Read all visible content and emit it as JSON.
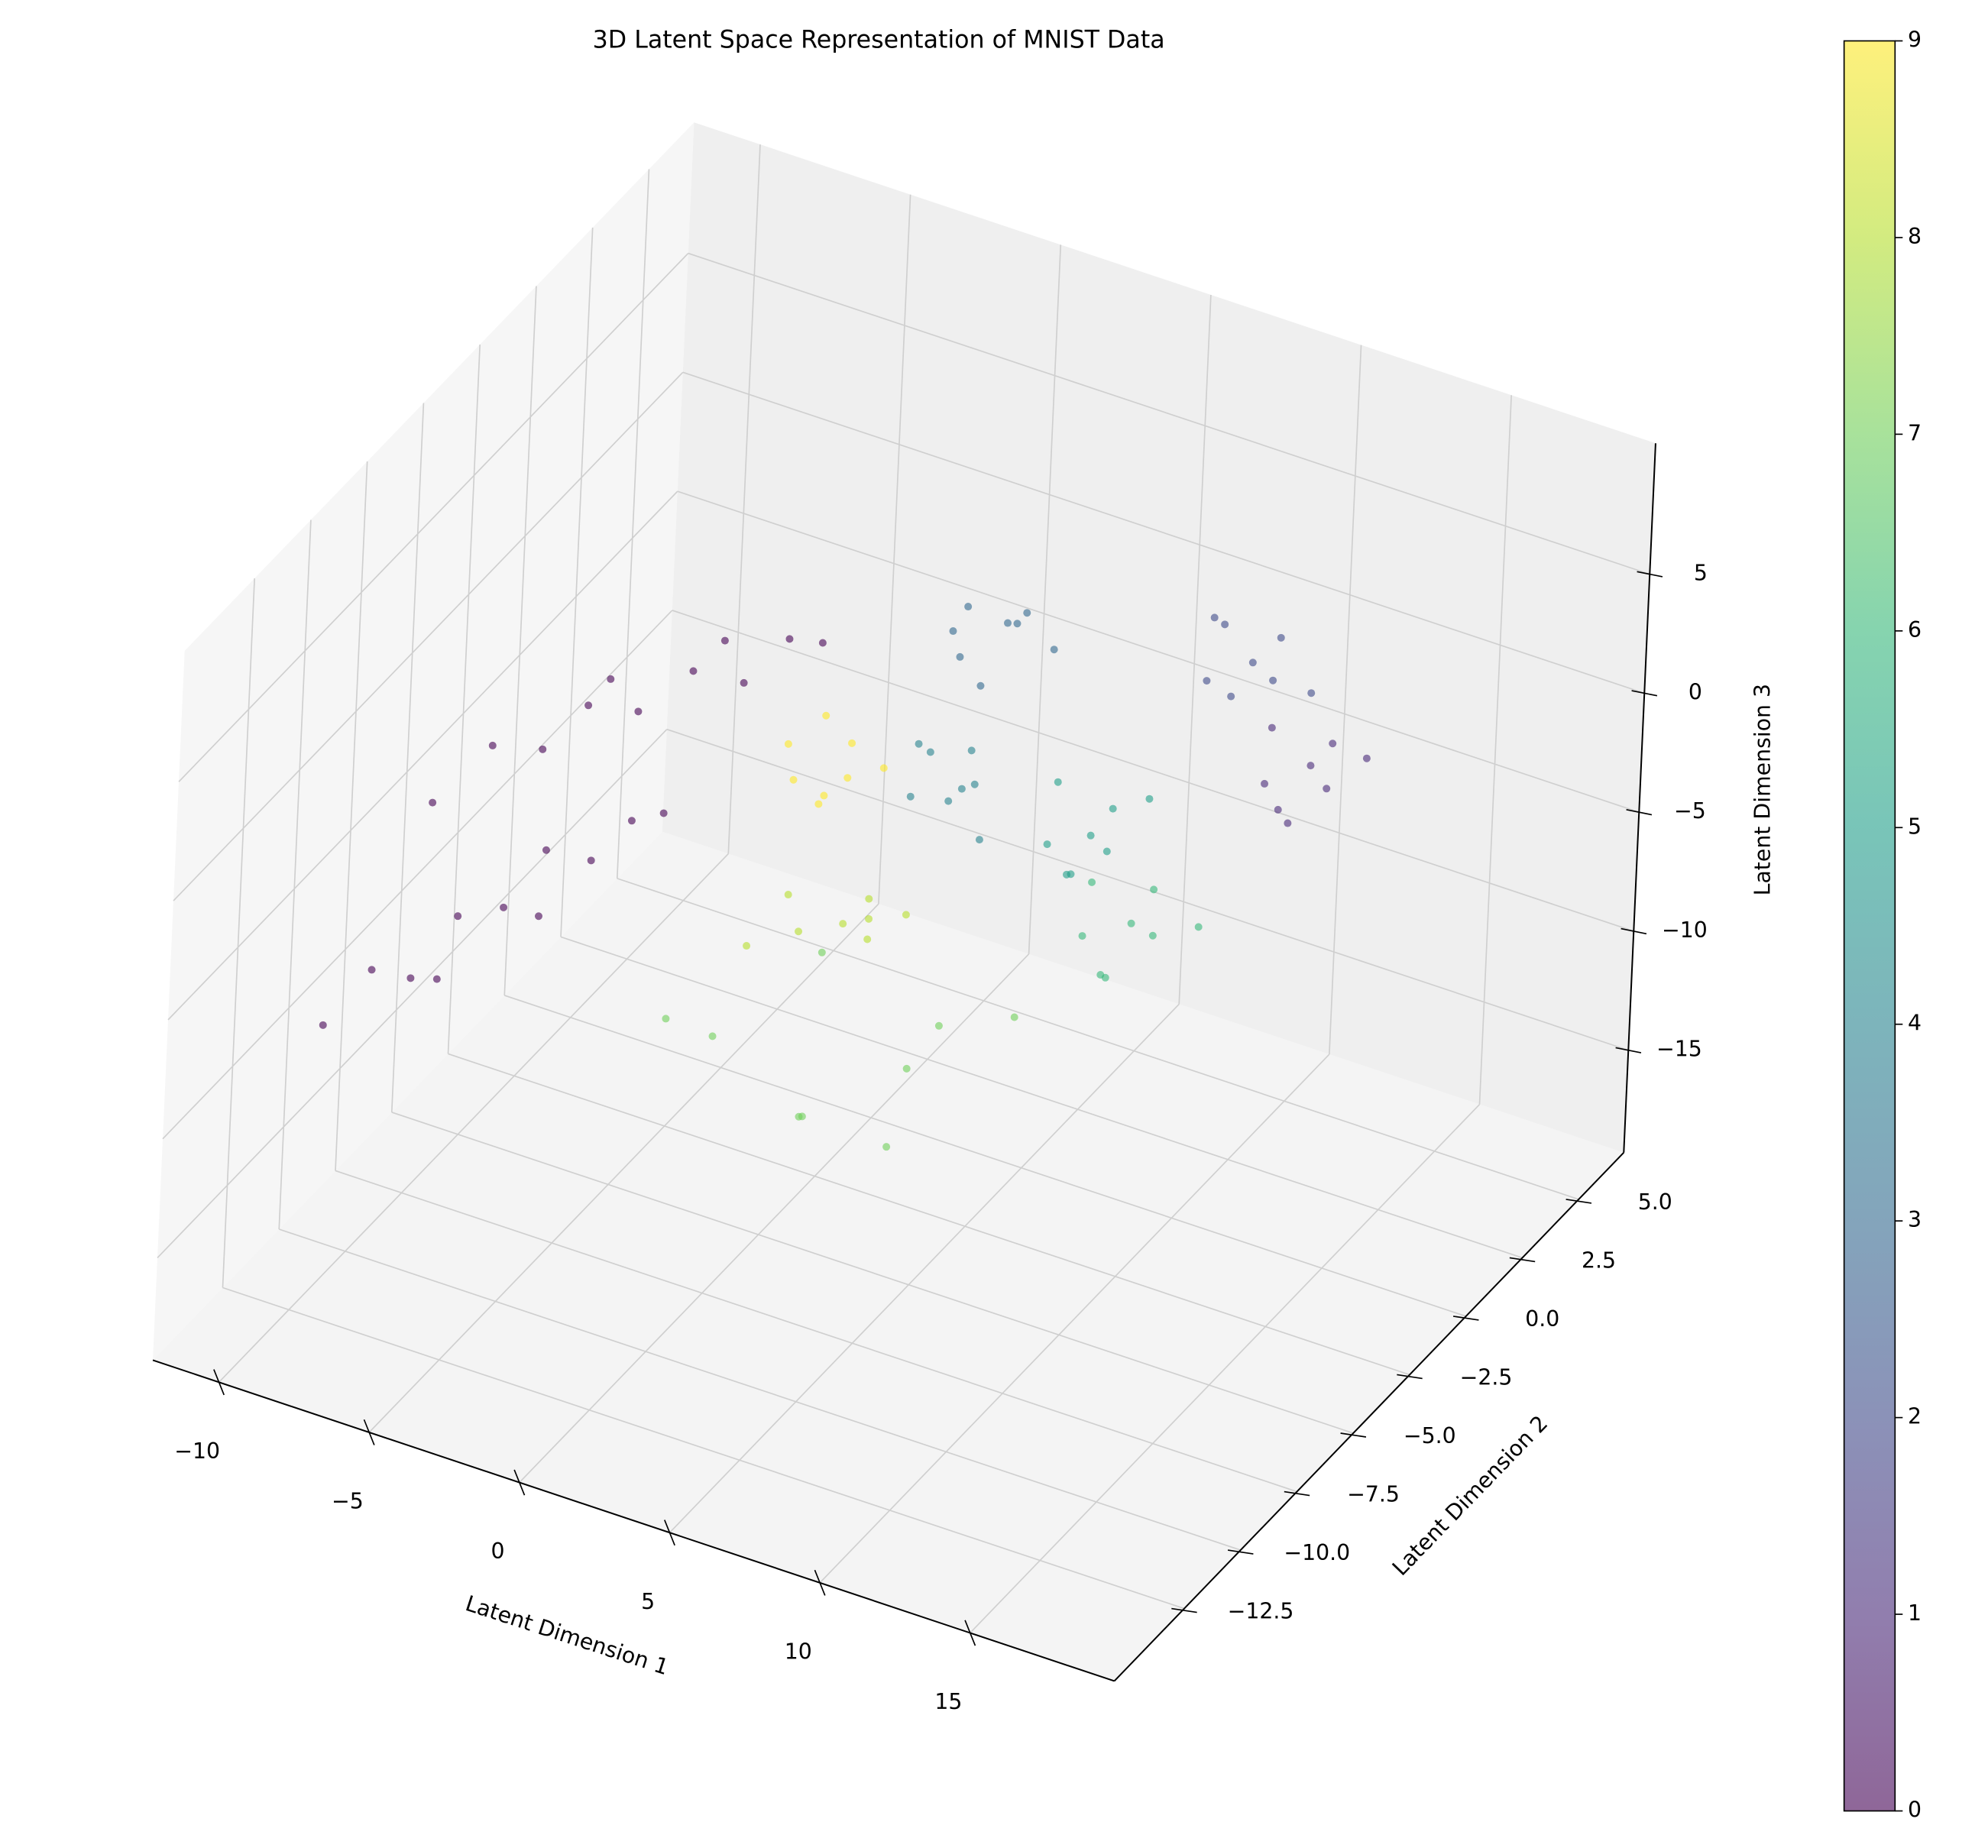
{
  "chart_data": {
    "type": "scatter3d",
    "title": "3D Latent Space Representation of MNIST Data",
    "xlabel": "Latent Dimension 1",
    "ylabel": "Latent Dimension 2",
    "zlabel": "Latent Dimension 3",
    "x": [
      -11.2,
      -10.6,
      -10.3,
      -9.9,
      -9.4,
      -9.0,
      -8.5,
      -8.0,
      -7.6,
      -10.0,
      -8.8,
      -8.5,
      -7.6,
      -6.8,
      -6.0,
      -5.2,
      -4.3,
      -3.4,
      -2.6,
      -2.0,
      -5.8,
      -3.8,
      0.2,
      1.5,
      0.8,
      1.9,
      0.4,
      1.2,
      2.3,
      -0.3,
      -0.4,
      1.3,
      0.2,
      1.8,
      -1.0,
      0.9,
      2.4,
      -1.8,
      -2.5,
      1.8,
      3.5,
      -0.5,
      0.8,
      -1.5,
      2.8,
      4.2,
      -3.0,
      3.5,
      4.8,
      3.9,
      5.1,
      4.3,
      3.2,
      4.6,
      5.4,
      4.0,
      5.5,
      4.6,
      5.9,
      3.7,
      5.0,
      6.3,
      4.3,
      6.5,
      7.9,
      7.0,
      8.4,
      6.2,
      7.6,
      8.8,
      6.9,
      6.8,
      8.3,
      7.4,
      8.9,
      6.4,
      7.9,
      9.4,
      7.1,
      9.8,
      11.4,
      10.3,
      11.9,
      9.4,
      10.9,
      12.4,
      10.1,
      11.0,
      12.4,
      11.5,
      12.9,
      10.6,
      12.1,
      13.4,
      11.2
    ],
    "y": [
      -9.8,
      -8.5,
      -7.1,
      -5.6,
      -4.2,
      -2.9,
      -1.5,
      -0.4,
      0.5,
      -6.3,
      -3.4,
      -9.0,
      -7.6,
      -6.4,
      -5.5,
      -4.3,
      -3.1,
      -2.0,
      -1.1,
      -0.4,
      -4.8,
      -2.4,
      -4.6,
      -3.8,
      -4.0,
      -4.5,
      -3.5,
      -4.8,
      -3.4,
      -4.2,
      -3.2,
      -2.4,
      -2.0,
      -3.1,
      -2.9,
      -1.8,
      -2.2,
      -3.6,
      -4.0,
      -1.0,
      -2.0,
      -2.5,
      -4.5,
      -0.5,
      -3.2,
      0.5,
      -5.5,
      -3.8,
      -2.9,
      -2.6,
      -3.7,
      -4.1,
      -3.1,
      -2.4,
      -3.2,
      -2.5,
      -1.6,
      -1.2,
      -2.6,
      -1.8,
      -2.9,
      -1.4,
      -3.3,
      -1.6,
      -0.6,
      -0.3,
      -1.5,
      -0.8,
      -2.0,
      -0.2,
      -1.2,
      -0.2,
      0.9,
      1.2,
      0.1,
      0.7,
      -0.6,
      1.5,
      0.3,
      0.8,
      1.9,
      2.2,
      0.9,
      1.6,
      0.4,
      2.0,
      1.1,
      2.0,
      3.1,
      3.4,
      2.2,
      2.8,
      1.6,
      3.3,
      2.4
    ],
    "z": [
      -10.5,
      -9.2,
      -10.8,
      -9.5,
      -10.3,
      -9.0,
      -10.6,
      -9.8,
      -10.2,
      -11.5,
      -11.2,
      -0.8,
      0.6,
      -0.4,
      0.9,
      -0.2,
      0.7,
      -0.5,
      0.8,
      0.2,
      1.4,
      1.5,
      -0.5,
      0.8,
      -1.5,
      0.2,
      1.2,
      -0.9,
      -0.3,
      0.4,
      -8.5,
      -7.2,
      -9.1,
      -8.0,
      -7.5,
      -8.8,
      -7.6,
      -9.3,
      -13.0,
      -15.5,
      -12.0,
      -17.0,
      -14.5,
      -12.5,
      -16.2,
      -13.8,
      -11.0,
      -0.6,
      1.0,
      -1.8,
      0.3,
      1.9,
      0.8,
      -1.0,
      -2.2,
      4.2,
      5.8,
      4.6,
      6.5,
      5.5,
      3.8,
      4.4,
      6.2,
      -3.5,
      -2.4,
      -4.2,
      -3.1,
      -1.8,
      -3.9,
      -2.0,
      -5.0,
      -8.6,
      -7.1,
      -9.2,
      -8.0,
      -7.4,
      -9.5,
      -8.8,
      -10.6,
      2.4,
      3.8,
      2.0,
      3.2,
      4.1,
      2.6,
      1.8,
      4.6,
      -2.6,
      -1.4,
      -3.0,
      -2.2,
      -1.2,
      -3.4,
      -1.8,
      -4.0
    ],
    "c": [
      0,
      0,
      0,
      0,
      0,
      0,
      0,
      0,
      0,
      0,
      0,
      0,
      0,
      0,
      0,
      0,
      0,
      0,
      0,
      0,
      0,
      0,
      9,
      9,
      9,
      9,
      9,
      9,
      9,
      9,
      8,
      8,
      8,
      8,
      8,
      8,
      8,
      8,
      7,
      7,
      7,
      7,
      7,
      7,
      7,
      7,
      7,
      4,
      4,
      4,
      4,
      4,
      4,
      4,
      4,
      3,
      3,
      3,
      3,
      3,
      3,
      3,
      3,
      5,
      5,
      5,
      5,
      5,
      5,
      5,
      5,
      6,
      6,
      6,
      6,
      6,
      6,
      6,
      6,
      2,
      2,
      2,
      2,
      2,
      2,
      2,
      2,
      1,
      1,
      1,
      1,
      1,
      1,
      1,
      1
    ],
    "xlim": [
      -12.2,
      19.8
    ],
    "ylim": [
      -15.6,
      7
    ],
    "zlim": [
      -19.3,
      10.5
    ],
    "xticks": [
      {
        "value": -10,
        "label": "−10"
      },
      {
        "value": -5,
        "label": "−5"
      },
      0,
      5,
      10,
      15
    ],
    "yticks": [
      {
        "value": -12.5,
        "label": "−12.5"
      },
      {
        "value": -10,
        "label": "−10.0"
      },
      {
        "value": -7.5,
        "label": "−7.5"
      },
      {
        "value": -5,
        "label": "−5.0"
      },
      {
        "value": -2.5,
        "label": "−2.5"
      },
      {
        "value": 0,
        "label": "0.0"
      },
      2.5,
      {
        "value": 5,
        "label": "5.0"
      }
    ],
    "zticks": [
      {
        "value": -15,
        "label": "−15"
      },
      {
        "value": -10,
        "label": "−10"
      },
      {
        "value": -5,
        "label": "−5"
      },
      0,
      5
    ],
    "clim": [
      0,
      9
    ],
    "cticks": [
      0,
      1,
      2,
      3,
      4,
      5,
      6,
      7,
      8,
      9
    ],
    "colormap": "viridis",
    "alpha": 0.6,
    "grid": true
  }
}
